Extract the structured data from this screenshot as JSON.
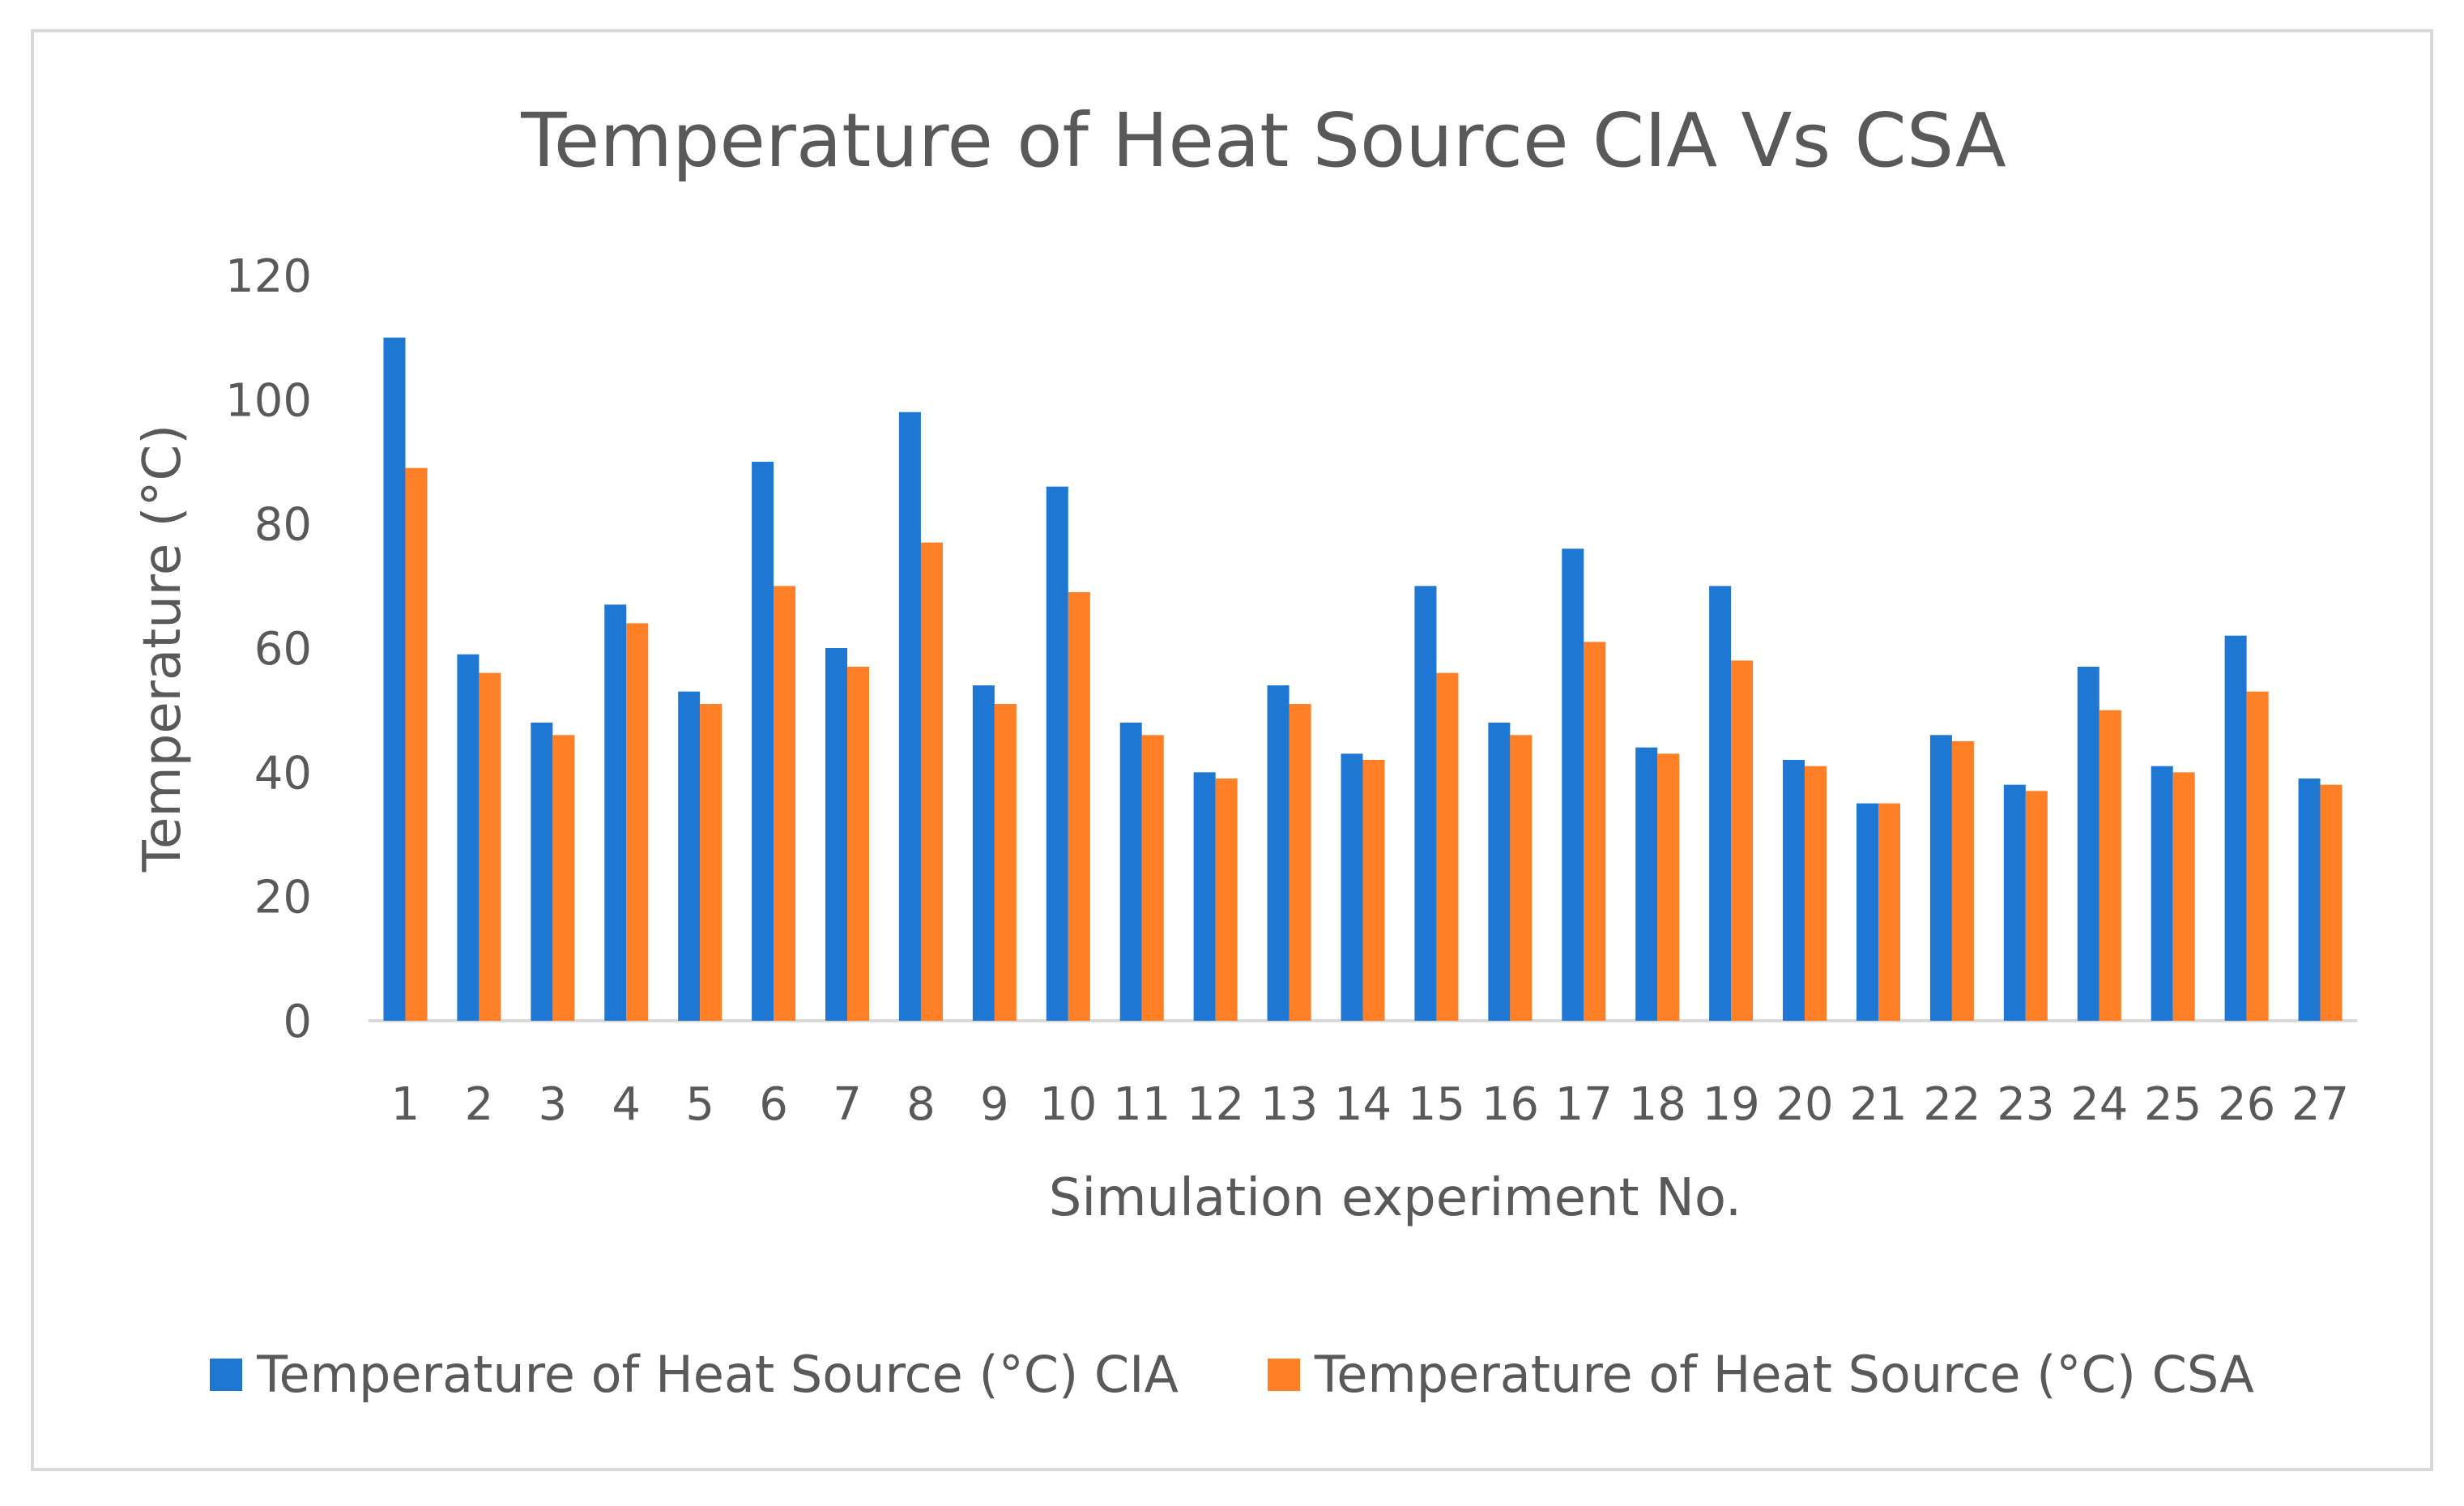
{
  "chart_data": {
    "type": "bar",
    "title": "Temperature of Heat Source CIA Vs CSA",
    "xlabel": "Simulation experiment No.",
    "ylabel": "Temperature (°C)",
    "ylim": [
      0,
      120
    ],
    "yticks": [
      "0",
      "20",
      "40",
      "60",
      "80",
      "100",
      "120"
    ],
    "categories": [
      "1",
      "2",
      "3",
      "4",
      "5",
      "6",
      "7",
      "8",
      "9",
      "10",
      "11",
      "12",
      "13",
      "14",
      "15",
      "16",
      "17",
      "18",
      "19",
      "20",
      "21",
      "22",
      "23",
      "24",
      "25",
      "26",
      "27"
    ],
    "series": [
      {
        "name": "Temperature of Heat Source (°C) CIA",
        "color": "#1f77d4",
        "values": [
          110,
          59,
          48,
          67,
          53,
          90,
          60,
          98,
          54,
          86,
          48,
          40,
          54,
          43,
          70,
          48,
          76,
          44,
          70,
          42,
          35,
          46,
          38,
          57,
          41,
          62,
          39
        ]
      },
      {
        "name": "Temperature of Heat Source (°C) CSA",
        "color": "#ff7f27",
        "values": [
          89,
          56,
          46,
          64,
          51,
          70,
          57,
          77,
          51,
          69,
          46,
          39,
          51,
          42,
          56,
          46,
          61,
          43,
          58,
          41,
          35,
          45,
          37,
          50,
          40,
          53,
          38
        ]
      }
    ]
  }
}
